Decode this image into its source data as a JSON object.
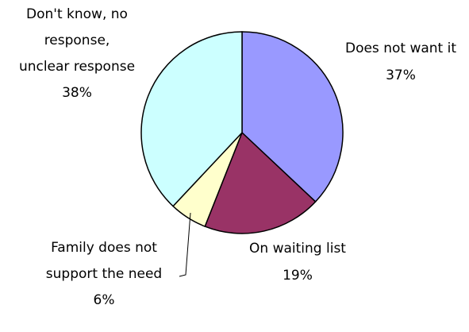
{
  "chart_data": {
    "type": "pie",
    "categories": [
      "Does not want it",
      "On waiting list",
      "Family does not support the need",
      "Don't know, no response, unclear response"
    ],
    "values": [
      37,
      19,
      6,
      38
    ],
    "value_labels": [
      "37%",
      "19%",
      "6%",
      "38%"
    ],
    "colors": [
      "#9999ff",
      "#993366",
      "#ffffcc",
      "#ccffff"
    ]
  }
}
